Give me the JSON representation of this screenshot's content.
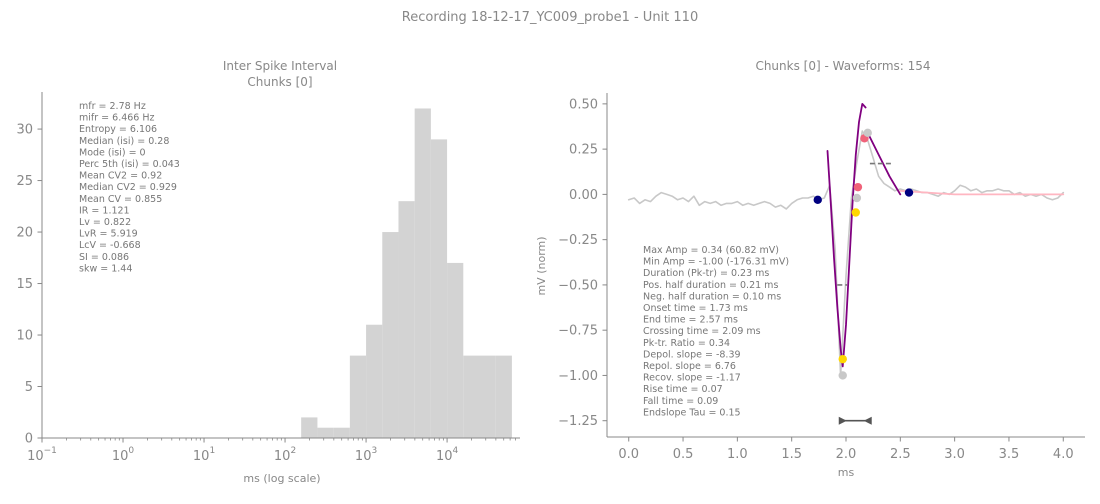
{
  "suptitle": "Recording 18-12-17_YC009_probe1 - Unit 110",
  "colors": {
    "text": "#888888",
    "hist": "#d3d3d3",
    "trace": "#c8c8c8",
    "fit_main": "#800080",
    "fit_tail": "#ffb6c1",
    "navy": "#000080",
    "pink_pt": "#f0627a",
    "gold": "#ffd700"
  },
  "chart_data": [
    {
      "type": "bar",
      "title_lines": [
        "Inter Spike Interval",
        "Chunks [0]"
      ],
      "xlabel": "ms (log scale)",
      "ylabel": "",
      "xscale": "log",
      "xlim": [
        0.1,
        79432
      ],
      "ylim": [
        0,
        33.6
      ],
      "xticks": [
        0.1,
        1,
        10,
        100,
        1000,
        10000
      ],
      "xtick_labels": [
        {
          "base": "10",
          "exp": "−1"
        },
        {
          "base": "10",
          "exp": "0"
        },
        {
          "base": "10",
          "exp": "1"
        },
        {
          "base": "10",
          "exp": "2"
        },
        {
          "base": "10",
          "exp": "3"
        },
        {
          "base": "10",
          "exp": "4"
        }
      ],
      "yticks": [
        0,
        5,
        10,
        15,
        20,
        25,
        30
      ],
      "bins": [
        {
          "x0": 158,
          "x1": 251,
          "count": 2
        },
        {
          "x0": 251,
          "x1": 398,
          "count": 1
        },
        {
          "x0": 398,
          "x1": 631,
          "count": 1
        },
        {
          "x0": 631,
          "x1": 1000,
          "count": 8
        },
        {
          "x0": 1000,
          "x1": 1585,
          "count": 11
        },
        {
          "x0": 1585,
          "x1": 2512,
          "count": 20
        },
        {
          "x0": 2512,
          "x1": 3981,
          "count": 23
        },
        {
          "x0": 3981,
          "x1": 6310,
          "count": 32
        },
        {
          "x0": 6310,
          "x1": 10000,
          "count": 29
        },
        {
          "x0": 10000,
          "x1": 15849,
          "count": 17
        },
        {
          "x0": 15849,
          "x1": 25119,
          "count": 8
        },
        {
          "x0": 25119,
          "x1": 39811,
          "count": 8
        },
        {
          "x0": 39811,
          "x1": 63096,
          "count": 8
        }
      ],
      "stats": [
        "mfr = 2.78 Hz",
        "mifr = 6.466 Hz",
        "Entropy = 6.106",
        "Median (isi) = 0.28",
        "Mode (isi) = 0",
        "Perc 5th (isi) = 0.043",
        "Mean CV2 = 0.92",
        "Median CV2 = 0.929",
        "Mean CV = 0.855",
        "IR = 1.121",
        "Lv = 0.822",
        "LvR = 5.919",
        "LcV = -0.668",
        "SI = 0.086",
        "skw = 1.44"
      ]
    },
    {
      "type": "line",
      "title": "Chunks [0] - Waveforms: 154",
      "xlabel": "ms",
      "ylabel": "mV (norm)",
      "xlim": [
        -0.2,
        4.2
      ],
      "ylim": [
        -1.34,
        0.56
      ],
      "xticks": [
        0.0,
        0.5,
        1.0,
        1.5,
        2.0,
        2.5,
        3.0,
        3.5,
        4.0
      ],
      "xtick_labels": [
        "0.0",
        "0.5",
        "1.0",
        "1.5",
        "2.0",
        "2.5",
        "3.0",
        "3.5",
        "4.0"
      ],
      "yticks": [
        0.5,
        0.25,
        0.0,
        -0.25,
        -0.5,
        -0.75,
        -1.0,
        -1.25
      ],
      "ytick_labels": [
        "0.50",
        "0.25",
        "0.00",
        "−0.25",
        "−0.50",
        "−0.75",
        "−1.00",
        "−1.25"
      ],
      "waveform": {
        "x": [
          0.0,
          0.05,
          0.1,
          0.15,
          0.2,
          0.25,
          0.3,
          0.35,
          0.4,
          0.45,
          0.5,
          0.55,
          0.6,
          0.65,
          0.7,
          0.75,
          0.8,
          0.85,
          0.9,
          0.95,
          1.0,
          1.05,
          1.1,
          1.15,
          1.2,
          1.25,
          1.3,
          1.35,
          1.4,
          1.45,
          1.5,
          1.55,
          1.6,
          1.65,
          1.7,
          1.75,
          1.8,
          1.85,
          1.9,
          1.95,
          2.0,
          2.05,
          2.1,
          2.15,
          2.2,
          2.25,
          2.3,
          2.35,
          2.4,
          2.45,
          2.5,
          2.55,
          2.6,
          2.65,
          2.7,
          2.75,
          2.8,
          2.85,
          2.9,
          2.95,
          3.0,
          3.05,
          3.1,
          3.15,
          3.2,
          3.25,
          3.3,
          3.35,
          3.4,
          3.45,
          3.5,
          3.55,
          3.6,
          3.65,
          3.7,
          3.75,
          3.8,
          3.85,
          3.9,
          3.95,
          4.0
        ],
        "y": [
          -0.03,
          -0.02,
          -0.05,
          -0.03,
          -0.04,
          -0.01,
          0.01,
          0.0,
          -0.01,
          -0.03,
          -0.02,
          -0.04,
          -0.01,
          -0.06,
          -0.04,
          -0.05,
          -0.04,
          -0.06,
          -0.05,
          -0.05,
          -0.04,
          -0.06,
          -0.05,
          -0.06,
          -0.05,
          -0.04,
          -0.05,
          -0.07,
          -0.06,
          -0.08,
          -0.05,
          -0.03,
          -0.02,
          -0.02,
          -0.01,
          -0.03,
          -0.02,
          0.05,
          -0.3,
          -1.0,
          -0.45,
          -0.02,
          0.18,
          0.35,
          0.3,
          0.2,
          0.1,
          0.06,
          0.04,
          0.02,
          0.03,
          0.02,
          0.03,
          0.02,
          0.01,
          0.01,
          0.0,
          -0.01,
          0.01,
          0.0,
          0.02,
          0.05,
          0.04,
          0.02,
          0.03,
          0.01,
          0.02,
          0.02,
          0.03,
          0.02,
          0.02,
          0.0,
          0.01,
          -0.01,
          0.0,
          -0.01,
          0.0,
          -0.02,
          -0.03,
          -0.02,
          0.01
        ]
      },
      "depol_fit": {
        "x": [
          1.83,
          1.86,
          1.89,
          1.92,
          1.95,
          1.97,
          2.0,
          2.03,
          2.06,
          2.09,
          2.12,
          2.15,
          2.18
        ],
        "y": [
          0.24,
          -0.05,
          -0.35,
          -0.62,
          -0.85,
          -0.95,
          -0.72,
          -0.38,
          -0.05,
          0.22,
          0.4,
          0.5,
          0.48
        ]
      },
      "recov_fit": {
        "x": [
          2.2,
          2.3,
          2.4,
          2.5
        ],
        "y": [
          0.34,
          0.22,
          0.1,
          0.0
        ]
      },
      "tail_fit": {
        "x": [
          2.5,
          2.75,
          3.0,
          3.25,
          3.5,
          3.75,
          4.0
        ],
        "y": [
          0.02,
          0.01,
          0.0,
          0.0,
          0.0,
          0.0,
          0.0
        ]
      },
      "half_widths": [
        {
          "x0": 2.22,
          "x1": 2.43,
          "y": 0.17
        },
        {
          "x0": 1.92,
          "x1": 2.01,
          "y": -0.5
        }
      ],
      "points": [
        {
          "x": 1.74,
          "y": -0.03,
          "color": "navy"
        },
        {
          "x": 2.58,
          "y": 0.01,
          "color": "navy"
        },
        {
          "x": 2.17,
          "y": 0.31,
          "color": "pink_pt"
        },
        {
          "x": 2.11,
          "y": 0.04,
          "color": "pink_pt"
        },
        {
          "x": 2.09,
          "y": -0.1,
          "color": "gold"
        },
        {
          "x": 1.97,
          "y": -0.91,
          "color": "gold"
        },
        {
          "x": 1.97,
          "y": -1.0,
          "color": "trace"
        },
        {
          "x": 2.2,
          "y": 0.34,
          "color": "trace"
        },
        {
          "x": 2.1,
          "y": -0.02,
          "color": "trace"
        }
      ],
      "scale_bar": {
        "x0": 1.97,
        "x1": 2.2,
        "y": -1.25
      },
      "stats": [
        "Max Amp = 0.34 (60.82 mV)",
        "Min Amp = -1.00 (-176.31 mV)",
        "Duration (Pk-tr) = 0.23 ms",
        "Pos. half duration = 0.21 ms",
        "Neg. half duration = 0.10 ms",
        "Onset time = 1.73 ms",
        "End time = 2.57 ms",
        "Crossing time = 2.09 ms",
        "Pk-tr. Ratio = 0.34",
        "Depol. slope = -8.39",
        "Repol. slope = 6.76",
        "Recov. slope = -1.17",
        "Rise time = 0.07",
        "Fall time = 0.09",
        "Endslope Tau = 0.15"
      ]
    }
  ]
}
